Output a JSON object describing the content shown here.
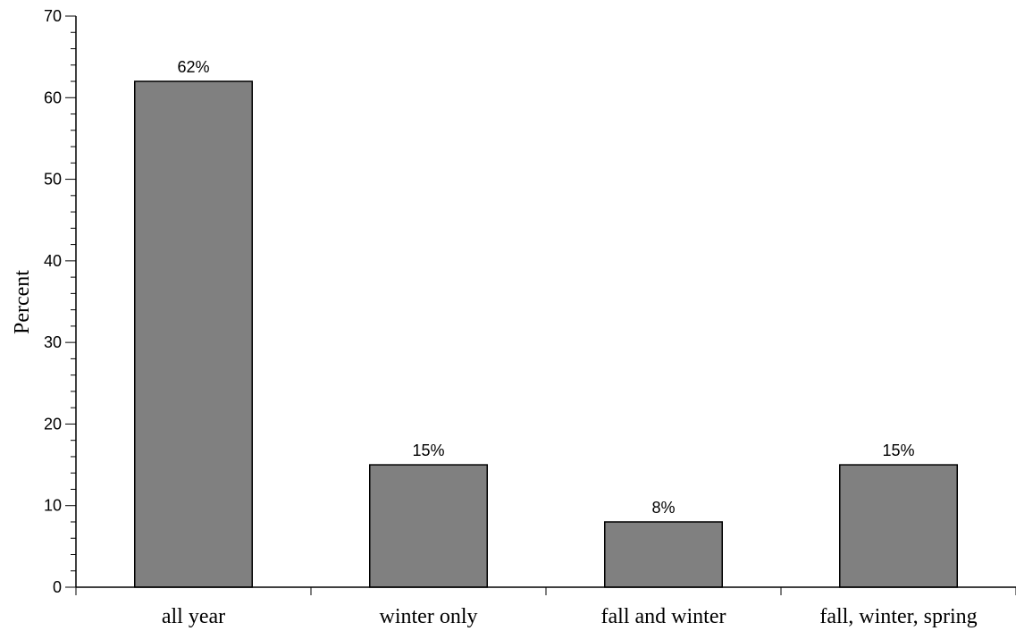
{
  "chart_data": {
    "type": "bar",
    "categories": [
      "all year",
      "winter only",
      "fall and winter",
      "fall, winter, spring"
    ],
    "values": [
      62,
      15,
      8,
      15
    ],
    "data_labels": [
      "62%",
      "15%",
      "8%",
      "15%"
    ],
    "ylabel": "Percent",
    "xlabel": "",
    "ylim": [
      0,
      70
    ],
    "yticks": [
      0,
      10,
      20,
      30,
      40,
      50,
      60,
      70
    ],
    "bar_color": "#808080",
    "grid": false,
    "legend": "none"
  }
}
